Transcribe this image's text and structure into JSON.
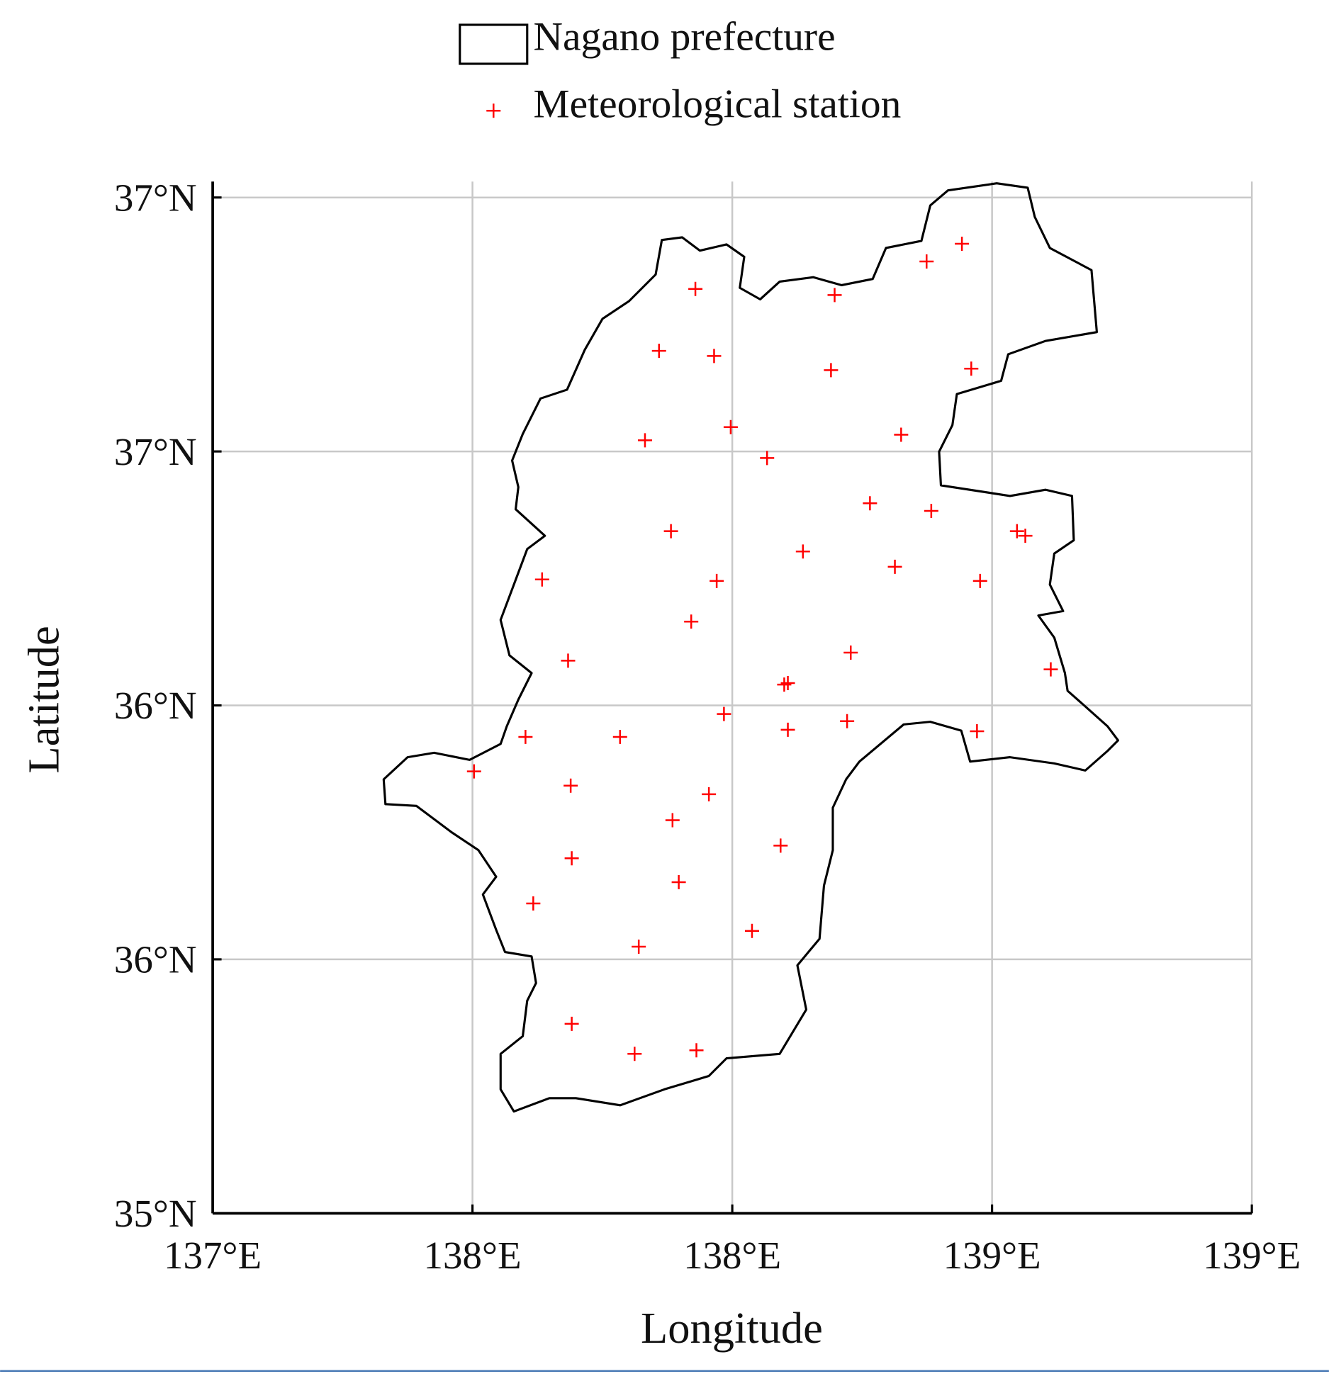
{
  "chart_data": {
    "type": "scatter",
    "xlabel": "Longitude",
    "ylabel": "Latitude",
    "xlim": [
      137,
      139
    ],
    "ylim": [
      35,
      37
    ],
    "xticks": [
      {
        "value": 137,
        "label": "137°E"
      },
      {
        "value": 137.5,
        "label": "138°E"
      },
      {
        "value": 138,
        "label": "138°E"
      },
      {
        "value": 138.5,
        "label": "139°E"
      },
      {
        "value": 139,
        "label": "139°E"
      }
    ],
    "yticks": [
      {
        "value": 35,
        "label": "35°N"
      },
      {
        "value": 35.5,
        "label": "36°N"
      },
      {
        "value": 36,
        "label": "36°N"
      },
      {
        "value": 36.5,
        "label": "37°N"
      },
      {
        "value": 37,
        "label": "37°N"
      }
    ],
    "grid": true,
    "legend": "top",
    "boundary": {
      "name": "Nagano prefecture",
      "color": "#000000"
    },
    "series": [
      {
        "name": "Meteorological station",
        "color": "#ff0000",
        "x": [
          137.929,
          138.197,
          138.374,
          138.442,
          137.859,
          137.965,
          138.19,
          138.46,
          137.832,
          137.997,
          138.067,
          138.325,
          138.265,
          138.383,
          137.882,
          138.548,
          138.564,
          138.136,
          138.313,
          137.634,
          137.97,
          138.477,
          137.921,
          137.684,
          138.228,
          138.613,
          138.1,
          138.107,
          137.984,
          137.602,
          137.784,
          138.221,
          138.107,
          138.471,
          137.503,
          137.689,
          137.955,
          137.885,
          138.093,
          137.691,
          137.897,
          137.617,
          138.038,
          137.82,
          137.691,
          137.812,
          137.931
        ],
        "y": [
          36.82,
          36.808,
          36.874,
          36.909,
          36.698,
          36.688,
          36.66,
          36.663,
          36.522,
          36.548,
          36.487,
          36.533,
          36.398,
          36.383,
          36.343,
          36.343,
          36.334,
          36.303,
          36.273,
          36.248,
          36.245,
          36.245,
          36.165,
          36.088,
          36.104,
          36.071,
          36.041,
          36.044,
          35.983,
          35.938,
          35.938,
          35.969,
          35.952,
          35.949,
          35.87,
          35.842,
          35.825,
          35.774,
          35.724,
          35.699,
          35.652,
          35.61,
          35.556,
          35.525,
          35.373,
          35.314,
          35.321
        ]
      }
    ]
  }
}
